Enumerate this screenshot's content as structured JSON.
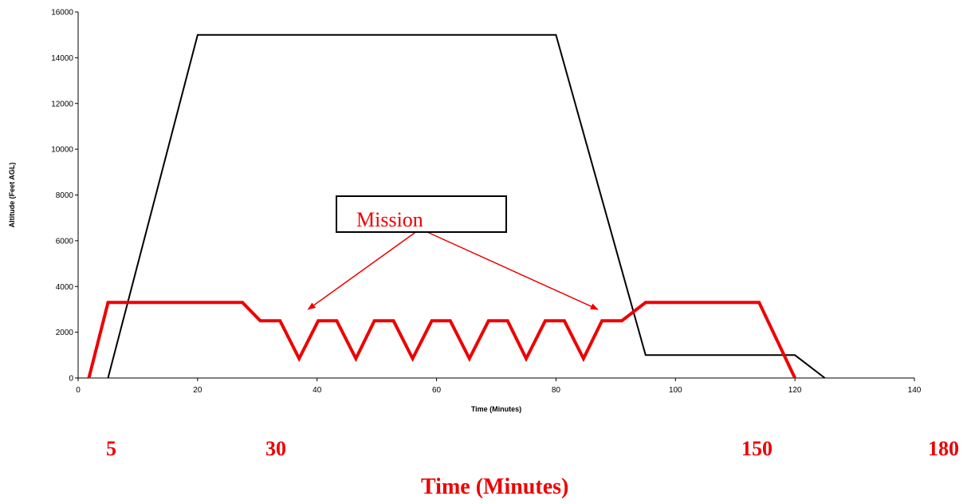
{
  "chart_data": {
    "type": "line",
    "xlabel": "Time (Minutes)",
    "ylabel": "Altitude (Feet AGL)",
    "xlim": [
      0,
      140
    ],
    "ylim": [
      0,
      16000
    ],
    "x_ticks": [
      0,
      20,
      40,
      60,
      80,
      100,
      120,
      140
    ],
    "y_ticks": [
      0,
      2000,
      4000,
      6000,
      8000,
      10000,
      12000,
      14000,
      16000
    ],
    "grid": false,
    "series": [
      {
        "color": "#000000",
        "x": [
          5,
          20,
          80,
          95,
          120,
          125
        ],
        "y": [
          0,
          15000,
          15000,
          1000,
          1000,
          0
        ]
      },
      {
        "color": "#ee0000",
        "x": [
          1.8,
          5,
          27.5,
          30.5,
          33.8,
          37,
          40.2,
          43.3,
          46.5,
          49.6,
          52.8,
          56,
          59.2,
          62.3,
          65.5,
          68.7,
          71.9,
          75,
          78.2,
          81.4,
          84.6,
          87.7,
          91,
          95,
          114,
          120
        ],
        "y": [
          0,
          3300,
          3300,
          2500,
          2500,
          850,
          2500,
          2500,
          850,
          2500,
          2500,
          850,
          2500,
          2500,
          850,
          2500,
          2500,
          850,
          2500,
          2500,
          850,
          2500,
          2500,
          3300,
          3300,
          0
        ]
      }
    ],
    "annotation": {
      "text": "Mission",
      "arrow_targets": [
        {
          "x": 38.5,
          "y": 3000
        },
        {
          "x": 87,
          "y": 3000
        }
      ]
    }
  },
  "overlay": {
    "labels": [
      "5",
      "30",
      "150",
      "180"
    ],
    "title": "Time (Minutes)",
    "color": "#ee0000"
  }
}
